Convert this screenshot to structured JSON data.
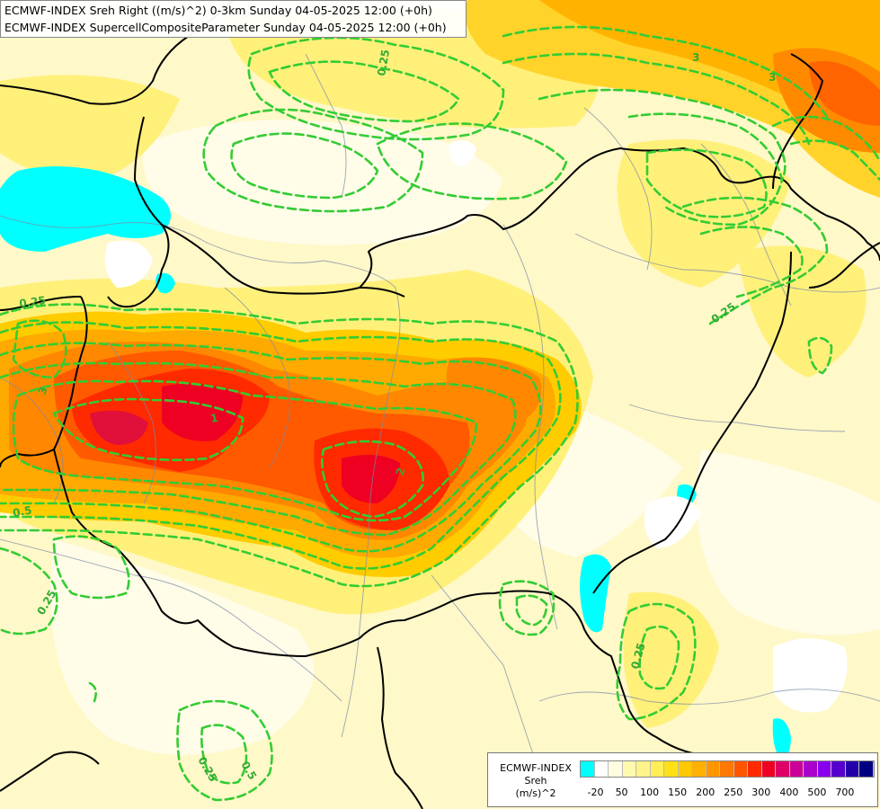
{
  "titles": {
    "line1": "ECMWF-INDEX Sreh Right ((m/s)^2) 0-3km Sunday 04-05-2025 12:00 (+0h)",
    "line2": "ECMWF-INDEX SupercellCompositeParameter Sunday 04-05-2025 12:00 (+0h)"
  },
  "legend": {
    "line1": "ECMWF-INDEX",
    "line2": "Sreh",
    "line3": "(m/s)^2",
    "colors": [
      "#00ffff",
      "#ffffff",
      "#fffde0",
      "#fff9b0",
      "#fff38a",
      "#ffee55",
      "#ffe014",
      "#ffc800",
      "#ffb000",
      "#ff9600",
      "#ff7800",
      "#ff5500",
      "#ff2a00",
      "#ee0022",
      "#dd0066",
      "#cc0099",
      "#aa00cc",
      "#8800ee",
      "#5500cc",
      "#2200aa",
      "#000080"
    ],
    "ticks": [
      "-20",
      "50",
      "100",
      "150",
      "200",
      "250",
      "300",
      "400",
      "500",
      "700"
    ]
  },
  "contour_labels": [
    "0.25",
    "0.25",
    "0.25",
    "0.25",
    "0.25",
    "0.25",
    "0.5",
    "0.5",
    "3",
    "3",
    "3",
    "2",
    "1"
  ]
}
